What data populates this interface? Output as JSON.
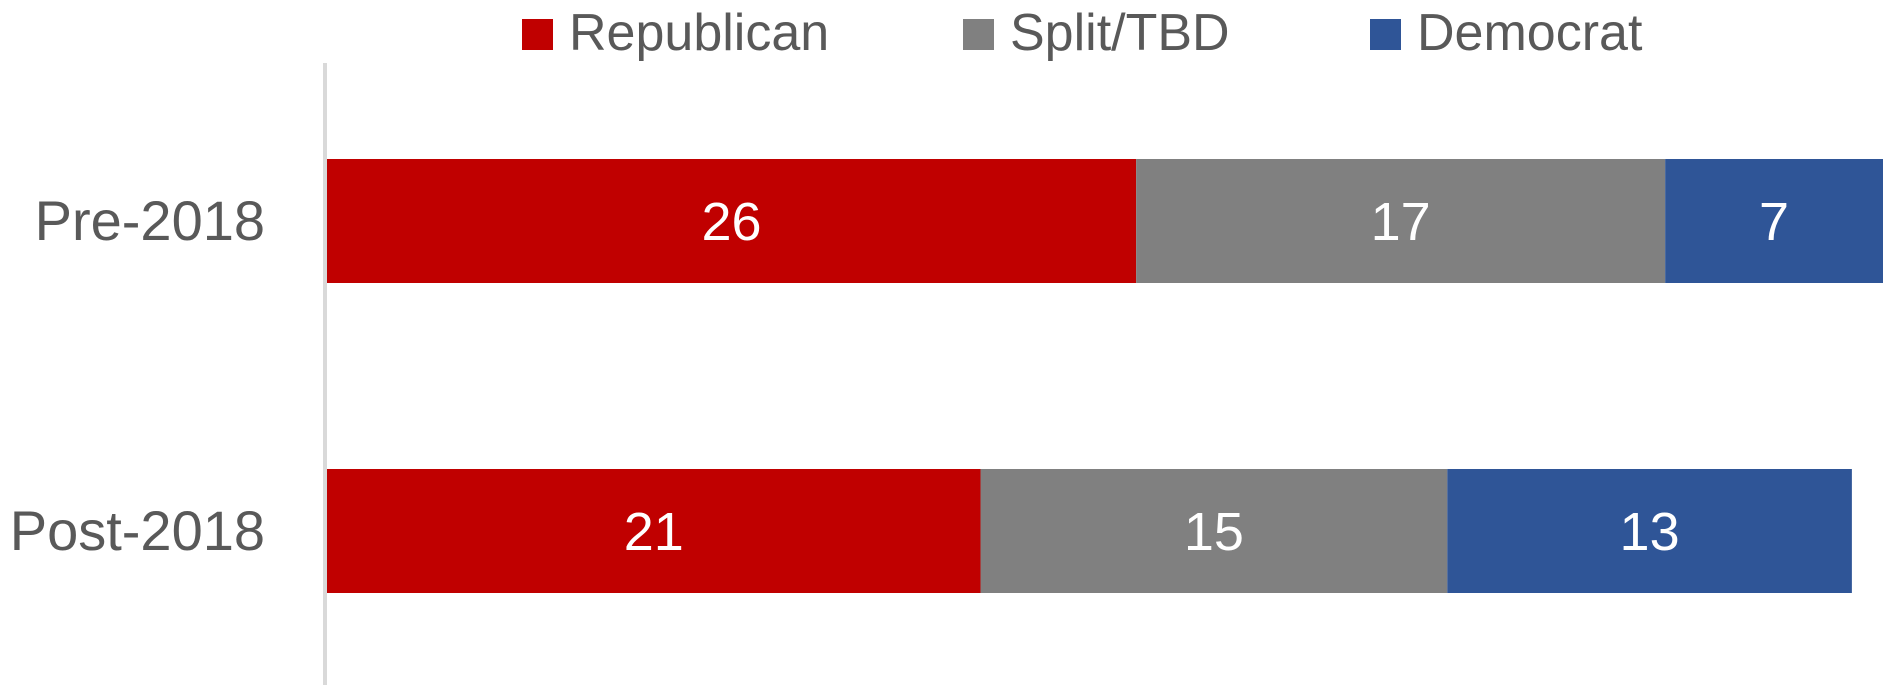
{
  "chart_data": {
    "type": "bar",
    "orientation": "horizontal",
    "stacked": true,
    "categories": [
      "Pre-2018",
      "Post-2018"
    ],
    "series": [
      {
        "name": "Republican",
        "values": [
          26,
          21
        ],
        "color": "#C00000"
      },
      {
        "name": "Split/TBD",
        "values": [
          17,
          15
        ],
        "color": "#808080"
      },
      {
        "name": "Democrat",
        "values": [
          7,
          13
        ],
        "color": "#2F5597"
      }
    ],
    "data_labels": true,
    "legend_position": "top",
    "grid": false,
    "xlim": [
      0,
      50
    ]
  }
}
